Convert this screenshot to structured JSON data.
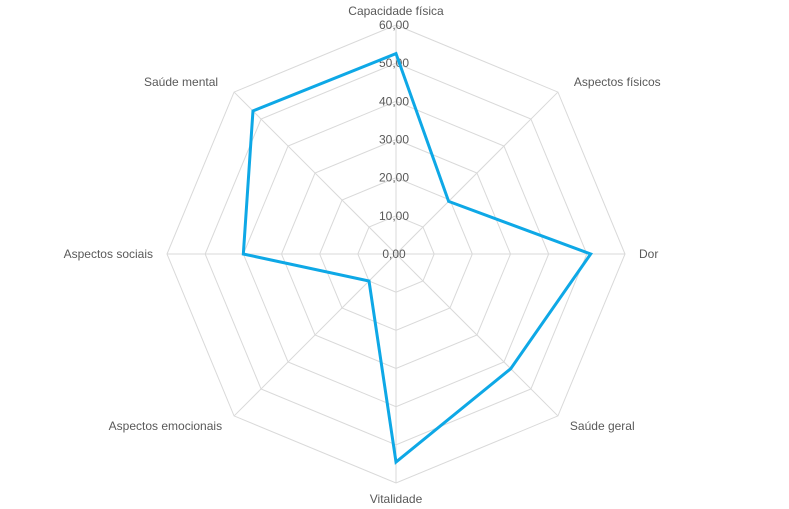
{
  "chart_data": {
    "type": "radar",
    "categories": [
      "Capacidade física",
      "Aspectos físicos",
      "Dor",
      "Saúde geral",
      "Vitalidade",
      "Aspectos emocionais",
      "Aspectos sociais",
      "Saúde mental"
    ],
    "series": [
      {
        "values": [
          52.5,
          19.5,
          51.0,
          42.5,
          54.5,
          10.0,
          40.0,
          53.0
        ],
        "color": "#0ea8e6"
      }
    ],
    "ticks": [
      "0,00",
      "10,00",
      "20,00",
      "30,00",
      "40,00",
      "50,00",
      "60,00"
    ],
    "range": [
      0,
      60
    ],
    "grid": true,
    "legend": "none"
  }
}
